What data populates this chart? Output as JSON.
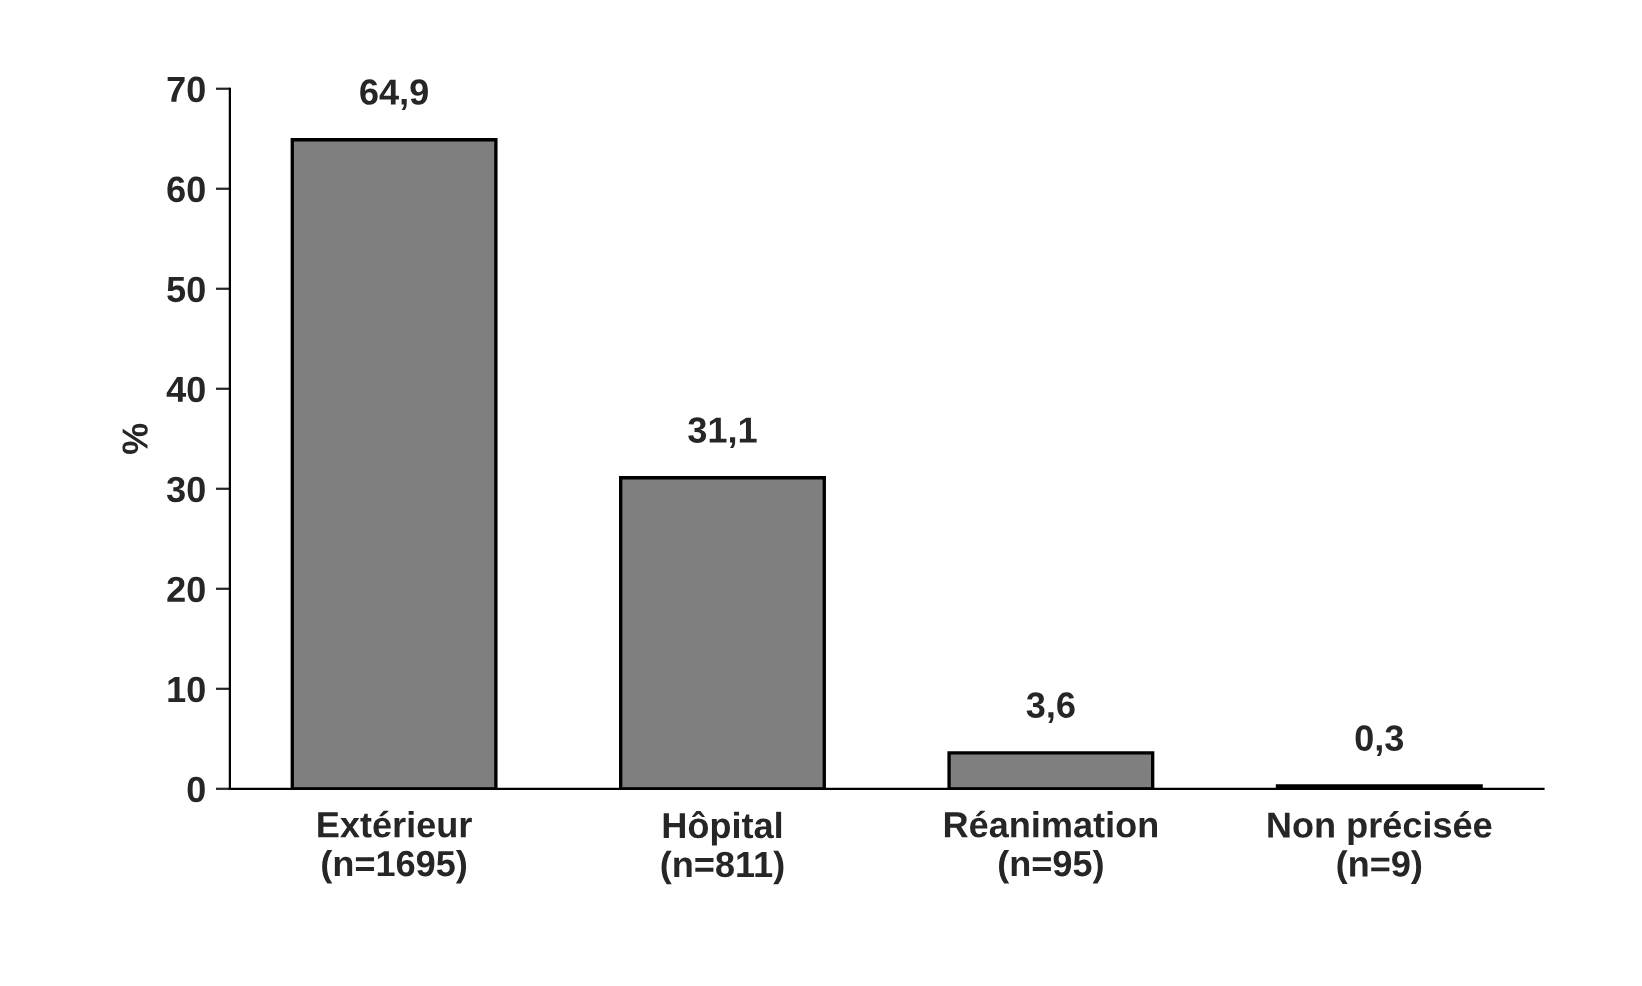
{
  "chart_data": {
    "type": "bar",
    "ylabel": "%",
    "categories": [
      "Extérieur\n(n=1695)",
      "Hôpital\n(n=811)",
      "Réanimation\n(n=95)",
      "Non précisée\n(n=9)"
    ],
    "values": [
      64.9,
      31.1,
      3.6,
      0.3
    ],
    "value_labels": [
      "64,9",
      "31,1",
      "3,6",
      "0,3"
    ],
    "color": "#7f7f7f",
    "ylim": [
      0,
      70
    ],
    "yticks": [
      0,
      10,
      20,
      30,
      40,
      50,
      60,
      70
    ],
    "grid": false,
    "legend": false
  }
}
